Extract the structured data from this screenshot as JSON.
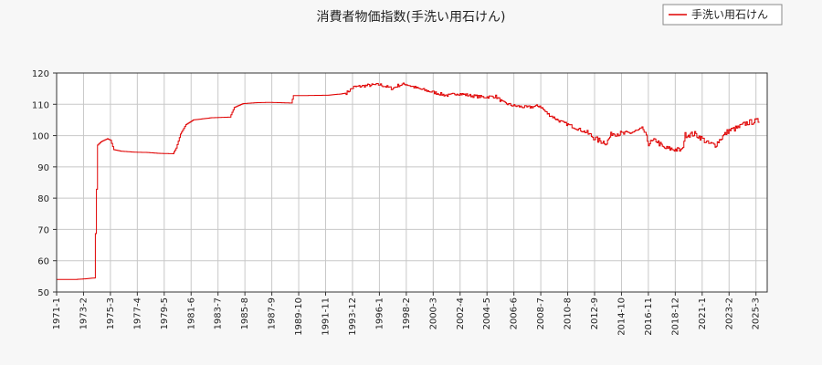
{
  "chart_data": {
    "type": "line",
    "title": "消費者物価指数(手洗い用石けん)",
    "xlabel": "",
    "ylabel": "",
    "ylim": [
      50,
      120
    ],
    "yticks": [
      50,
      60,
      70,
      80,
      90,
      100,
      110,
      120
    ],
    "x_tick_labels": [
      "1971-1",
      "1973-2",
      "1975-3",
      "1977-4",
      "1979-5",
      "1981-6",
      "1983-7",
      "1985-8",
      "1987-9",
      "1989-10",
      "1991-11",
      "1993-12",
      "1996-1",
      "1998-2",
      "2000-3",
      "2002-4",
      "2004-5",
      "2006-6",
      "2008-7",
      "2010-8",
      "2012-9",
      "2014-10",
      "2016-11",
      "2018-12",
      "2021-1",
      "2023-2",
      "2025-3"
    ],
    "grid": true,
    "legend_position": "top-right",
    "colors": {
      "series": "#e00000",
      "grid": "#c8c8c8",
      "plot_bg": "#ffffff",
      "page_bg": "#f7f7f7"
    },
    "series": [
      {
        "name": "手洗い用石けん",
        "points": [
          [
            "1971-1",
            54.0
          ],
          [
            "1972-6",
            54.0
          ],
          [
            "1973-3",
            54.2
          ],
          [
            "1973-12",
            54.5
          ],
          [
            "1974-3",
            97.0
          ],
          [
            "1974-6",
            98.0
          ],
          [
            "1974-12",
            99.0
          ],
          [
            "1975-3",
            98.5
          ],
          [
            "1975-6",
            95.5
          ],
          [
            "1976-1",
            95.0
          ],
          [
            "1977-1",
            94.7
          ],
          [
            "1978-1",
            94.6
          ],
          [
            "1979-1",
            94.3
          ],
          [
            "1980-1",
            94.2
          ],
          [
            "1980-4",
            96.0
          ],
          [
            "1980-8",
            100.5
          ],
          [
            "1981-1",
            103.5
          ],
          [
            "1981-8",
            105.0
          ],
          [
            "1983-1",
            105.7
          ],
          [
            "1984-6",
            105.9
          ],
          [
            "1984-10",
            109.0
          ],
          [
            "1985-6",
            110.2
          ],
          [
            "1986-6",
            110.5
          ],
          [
            "1987-6",
            110.6
          ],
          [
            "1988-6",
            110.5
          ],
          [
            "1989-3",
            110.4
          ],
          [
            "1989-5",
            112.8
          ],
          [
            "1990-6",
            112.8
          ],
          [
            "1992-1",
            112.9
          ],
          [
            "1993-1",
            113.3
          ],
          [
            "1993-6",
            113.6
          ],
          [
            "1994-1",
            115.5
          ],
          [
            "1995-1",
            116.0
          ],
          [
            "1996-1",
            116.3
          ],
          [
            "1997-1",
            115.0
          ],
          [
            "1997-6",
            116.0
          ],
          [
            "1998-1",
            116.5
          ],
          [
            "1999-1",
            115.0
          ],
          [
            "2000-1",
            114.0
          ],
          [
            "2001-1",
            113.0
          ],
          [
            "2001-6",
            112.8
          ],
          [
            "2002-1",
            113.5
          ],
          [
            "2003-1",
            112.8
          ],
          [
            "2004-1",
            112.3
          ],
          [
            "2005-1",
            112.5
          ],
          [
            "2005-8",
            110.5
          ],
          [
            "2006-6",
            109.5
          ],
          [
            "2007-6",
            109.0
          ],
          [
            "2008-6",
            109.5
          ],
          [
            "2009-1",
            107.0
          ],
          [
            "2010-1",
            104.5
          ],
          [
            "2011-1",
            102.8
          ],
          [
            "2012-1",
            101.0
          ],
          [
            "2012-12",
            98.5
          ],
          [
            "2013-8",
            97.7
          ],
          [
            "2014-1",
            100.8
          ],
          [
            "2015-1",
            100.5
          ],
          [
            "2016-1",
            101.5
          ],
          [
            "2016-6",
            102.0
          ],
          [
            "2016-11",
            97.5
          ],
          [
            "2017-6",
            98.5
          ],
          [
            "2018-1",
            96.0
          ],
          [
            "2019-1",
            95.5
          ],
          [
            "2019-6",
            95.2
          ],
          [
            "2019-9",
            100.2
          ],
          [
            "2020-6",
            100.5
          ],
          [
            "2021-1",
            99.0
          ],
          [
            "2021-6",
            97.5
          ],
          [
            "2022-1",
            97.0
          ],
          [
            "2022-6",
            99.0
          ],
          [
            "2023-1",
            101.5
          ],
          [
            "2023-10",
            102.5
          ],
          [
            "2024-6",
            104.0
          ],
          [
            "2025-1",
            104.5
          ],
          [
            "2025-6",
            104.7
          ]
        ]
      }
    ]
  }
}
